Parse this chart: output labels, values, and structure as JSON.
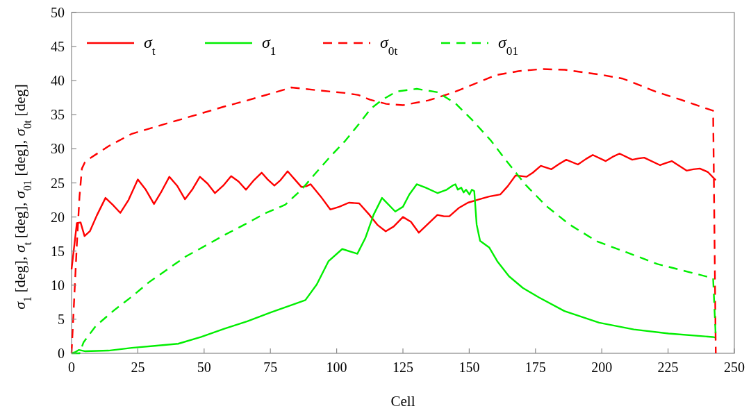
{
  "chart_data": {
    "type": "line",
    "xlabel": "Cell",
    "ylabel": "σ$_{1}$ [deg], σ$_{t}$ [deg], σ$_{01}$ [deg], σ$_{0t}$ [deg]",
    "xlim": [
      0,
      250
    ],
    "xticks": [
      0,
      25,
      50,
      75,
      100,
      125,
      150,
      175,
      200,
      225,
      250
    ],
    "ylim": [
      0,
      50
    ],
    "yticks": [
      0,
      5,
      10,
      15,
      20,
      25,
      30,
      35,
      40,
      45,
      50
    ],
    "grid": false,
    "legend": "top left",
    "marker": "none",
    "series": [
      {
        "name": "σ$_{t}$",
        "color": "#ff0000",
        "line_style": "solid",
        "x": [
          0,
          2,
          3.4,
          4.9,
          6.9,
          9.5,
          12.8,
          15.5,
          18.4,
          21.5,
          25,
          28,
          31.1,
          34,
          36.9,
          39.8,
          42.8,
          45.5,
          48.4,
          51.3,
          54.1,
          57.2,
          60.2,
          63,
          65.8,
          68.8,
          71.7,
          74,
          76.5,
          78.8,
          81.5,
          84,
          86.7,
          88.5,
          90.2,
          94,
          97.6,
          101,
          104.6,
          108.5,
          112.4,
          115.5,
          118.5,
          121.5,
          125,
          128,
          131,
          134.5,
          138,
          140.5,
          142.5,
          146,
          149.5,
          153.8,
          157.5,
          161.7,
          164.5,
          167.5,
          171.6,
          174,
          177,
          181,
          184,
          186.6,
          191,
          194,
          196.6,
          201.5,
          204,
          206.7,
          211.5,
          214,
          216,
          222,
          224,
          226.4,
          232,
          234.5,
          237,
          240,
          243
        ],
        "values": [
          12.3,
          19.1,
          19.2,
          17.2,
          17.9,
          20.2,
          22.8,
          21.8,
          20.6,
          22.5,
          25.5,
          24,
          21.9,
          23.8,
          25.9,
          24.6,
          22.6,
          24,
          25.9,
          24.9,
          23.5,
          24.6,
          26,
          25.2,
          24,
          25.4,
          26.5,
          25.5,
          24.6,
          25.4,
          26.7,
          25.6,
          24.4,
          24.5,
          24.8,
          23,
          21.1,
          21.5,
          22.1,
          22,
          20.3,
          18.8,
          17.9,
          18.6,
          20,
          19.3,
          17.7,
          19,
          20.3,
          20.1,
          20.1,
          21.3,
          22.1,
          22.6,
          23,
          23.3,
          24.5,
          26.1,
          25.9,
          26.5,
          27.5,
          27,
          27.8,
          28.4,
          27.7,
          28.5,
          29.1,
          28.2,
          28.8,
          29.3,
          28.4,
          28.6,
          28.7,
          27.6,
          27.9,
          28.2,
          26.8,
          27,
          27.1,
          26.6,
          25.4
        ]
      },
      {
        "name": "σ$_{1}$",
        "color": "#00ee00",
        "line_style": "solid",
        "x": [
          0,
          1.5,
          2.8,
          5.2,
          14,
          22.7,
          31.4,
          40.2,
          48.9,
          57.6,
          66.3,
          75.1,
          83.8,
          88.2,
          92.5,
          96.9,
          102.1,
          107.8,
          110.8,
          113.9,
          117.1,
          122.1,
          125,
          127.4,
          130.2,
          133.6,
          138.1,
          141.5,
          143.7,
          144.8,
          145.7,
          147,
          147.9,
          148.8,
          150.1,
          151,
          151.9,
          152.8,
          154.1,
          157.6,
          160.6,
          165,
          170.2,
          176.3,
          185.9,
          199,
          212.1,
          225.2,
          241.8,
          243
        ],
        "values": [
          0,
          0.2,
          0.5,
          0.3,
          0.4,
          0.8,
          1.1,
          1.4,
          2.4,
          3.6,
          4.7,
          6,
          7.2,
          7.8,
          10.1,
          13.5,
          15.3,
          14.6,
          16.9,
          20.3,
          22.8,
          20.8,
          21.5,
          23.3,
          24.8,
          24.3,
          23.5,
          24,
          24.6,
          24.8,
          24,
          24.3,
          23.6,
          24,
          23.3,
          24,
          23.8,
          18.9,
          16.5,
          15.5,
          13.5,
          11.3,
          9.6,
          8.2,
          6.2,
          4.5,
          3.5,
          2.9,
          2.4,
          2.3
        ]
      },
      {
        "name": "σ$_{0t}$",
        "color": "#ff0000",
        "line_style": "dashed",
        "x": [
          0,
          1,
          2,
          3,
          3.9,
          5,
          6.9,
          14,
          22.7,
          31.4,
          40.2,
          48.9,
          57.6,
          66.3,
          75.1,
          82.9,
          92.5,
          103,
          108.2,
          112.6,
          118.7,
          125,
          134.6,
          144.2,
          151.2,
          159.9,
          168.6,
          177.4,
          186.1,
          199.2,
          207.9,
          221,
          229.8,
          241.1,
          242,
          243
        ],
        "values": [
          0,
          8,
          16,
          23,
          27.1,
          28,
          28.6,
          30.4,
          32.2,
          33.2,
          34.2,
          35.2,
          36.2,
          37.1,
          38.1,
          39,
          38.6,
          38.2,
          37.9,
          37.2,
          36.6,
          36.4,
          37.1,
          38.3,
          39.4,
          40.8,
          41.4,
          41.7,
          41.6,
          40.9,
          40.3,
          38.3,
          37.2,
          35.7,
          35.6,
          0
        ]
      },
      {
        "name": "σ$_{01}$",
        "color": "#00ee00",
        "line_style": "dashed",
        "x": [
          0,
          3,
          4.5,
          9.1,
          16,
          23,
          29.1,
          36.1,
          43.1,
          51,
          57.9,
          65.8,
          72.8,
          80.6,
          86.7,
          92,
          97.2,
          103.3,
          108.5,
          112.9,
          117.2,
          122.5,
          130.2,
          138.1,
          145,
          151.2,
          158.2,
          164.3,
          171.3,
          179.1,
          187.8,
          198.3,
          208.8,
          221,
          234.1,
          241.1,
          242,
          243
        ],
        "values": [
          0,
          0,
          1.6,
          4,
          6.3,
          8.4,
          10.4,
          12.3,
          14.2,
          15.9,
          17.4,
          19,
          20.5,
          21.8,
          24,
          26.4,
          28.7,
          31.2,
          33.7,
          35.9,
          37.2,
          38.4,
          38.8,
          38.3,
          36.6,
          34.2,
          31.2,
          28.1,
          24.7,
          21.6,
          18.9,
          16.4,
          14.9,
          13.1,
          11.8,
          11.1,
          11,
          2.3
        ]
      }
    ]
  }
}
